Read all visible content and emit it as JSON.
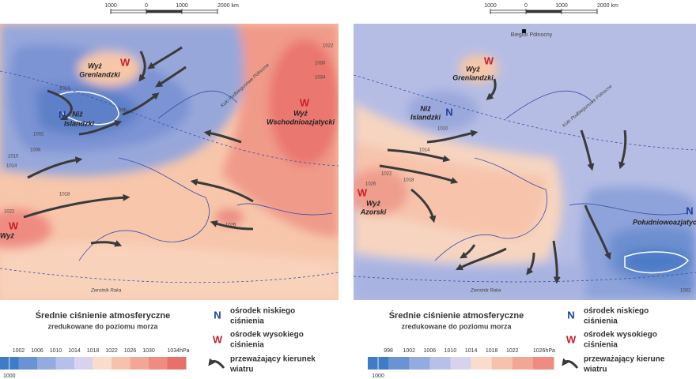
{
  "panels": [
    {
      "scale_bar": [
        "1000",
        "0",
        "1000",
        "2000 km"
      ],
      "centers": [
        {
          "symbol": "W",
          "name": [
            "Wyż",
            "Grenlandzki"
          ]
        },
        {
          "symbol": "N",
          "name": [
            "Niż",
            "Islandzki"
          ]
        },
        {
          "symbol": "W",
          "name": [
            "Wyż",
            "Wschodnioazjatycki"
          ]
        },
        {
          "symbol": "W",
          "name": [
            "Wyż"
          ]
        }
      ],
      "circles": [
        "Koło Podbiegunowe Północne",
        "Zwrotnik Raka"
      ],
      "isobars": [
        "1014",
        "998",
        "1002",
        "1006",
        "1010",
        "1014",
        "1018",
        "1022",
        "1022",
        "1026",
        "1030",
        "1034"
      ],
      "legend": {
        "title": "Średnie ciśnienie atmosferyczne",
        "subtitle": "zredukowane do poziomu morza",
        "scale": [
          "1002",
          "1006",
          "1010",
          "1014",
          "1018",
          "1022",
          "1026",
          "1030",
          "1034hPa"
        ],
        "scale_below": "1000",
        "low": [
          "ośrodek niskiego",
          "ciśnienia"
        ],
        "high": [
          "ośrodek wysokiego",
          "ciśnienia"
        ],
        "wind": [
          "przeważający kierunek",
          "wiatru"
        ]
      }
    },
    {
      "scale_bar": [
        "1000",
        "0",
        "1000",
        "2000 km"
      ],
      "pole": "Biegun Północny",
      "centers": [
        {
          "symbol": "W",
          "name": [
            "Wyż",
            "Grenlandzki"
          ]
        },
        {
          "symbol": "N",
          "name": [
            "Niż",
            "Islandzki"
          ]
        },
        {
          "symbol": "W",
          "name": [
            "Wyż",
            "Azorski"
          ]
        },
        {
          "symbol": "N",
          "name": [
            "Południowoazjatycki"
          ]
        }
      ],
      "circles": [
        "Koło Podbiegunowe Północne",
        "Zwrotnik Raka"
      ],
      "isobars": [
        "1010",
        "1014",
        "1018",
        "1022",
        "1026",
        "1002"
      ],
      "legend": {
        "title": "Średnie ciśnienie atmosferyczne",
        "subtitle": "zredukowane do poziomu morza",
        "scale": [
          "998",
          "1002",
          "1006",
          "1010",
          "1014",
          "1018",
          "1022",
          "1026hPa"
        ],
        "scale_below": "1000",
        "low": [
          "ośrodek niskiego",
          "ciśnienia"
        ],
        "high": [
          "ośrodek wysokiego",
          "ciśnienia"
        ],
        "wind": [
          "przeważający kierune",
          "wiatru"
        ]
      }
    }
  ]
}
